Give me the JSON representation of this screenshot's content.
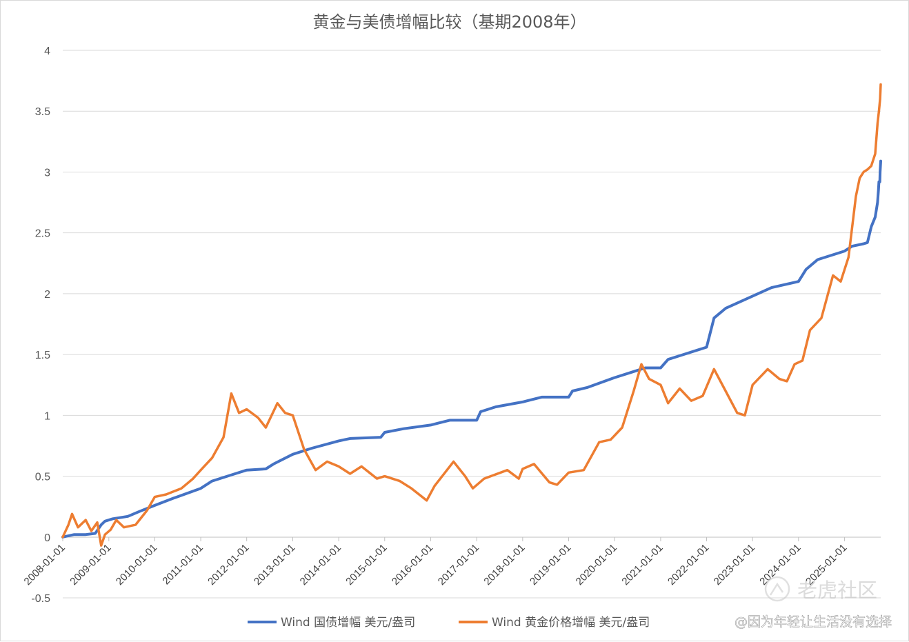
{
  "chart_data": {
    "type": "line",
    "title": "黄金与美债增幅比较（基期2008年）",
    "xlabel": "",
    "ylabel": "",
    "ylim": [
      -0.5,
      4
    ],
    "yticks": [
      -0.5,
      0,
      0.5,
      1,
      1.5,
      2,
      2.5,
      3,
      3.5,
      4
    ],
    "ytick_labels": [
      "-0.5",
      "0",
      "0.5",
      "1",
      "1.5",
      "2",
      "2.5",
      "3",
      "3.5",
      "4"
    ],
    "xrange": [
      "2008-01-01",
      "2025-10-15"
    ],
    "xtick_labels": [
      "2008-01-01",
      "2009-01-01",
      "2010-01-01",
      "2011-01-01",
      "2012-01-01",
      "2013-01-01",
      "2014-01-01",
      "2015-01-01",
      "2016-01-01",
      "2017-01-01",
      "2018-01-01",
      "2019-01-01",
      "2020-01-01",
      "2021-01-01",
      "2022-01-01",
      "2023-01-01",
      "2024-01-01",
      "2025-01-01"
    ],
    "grid": true,
    "legend_position": "bottom",
    "series": [
      {
        "name": "Wind 国债增幅 美元/盎司",
        "color": "#4472C4",
        "points": [
          [
            "2008-01-01",
            0.0
          ],
          [
            "2008-04-01",
            0.02
          ],
          [
            "2008-07-01",
            0.02
          ],
          [
            "2008-09-15",
            0.03
          ],
          [
            "2008-11-01",
            0.1
          ],
          [
            "2008-12-01",
            0.13
          ],
          [
            "2009-02-01",
            0.15
          ],
          [
            "2009-06-01",
            0.17
          ],
          [
            "2009-09-01",
            0.21
          ],
          [
            "2010-01-01",
            0.26
          ],
          [
            "2010-06-01",
            0.32
          ],
          [
            "2011-01-01",
            0.4
          ],
          [
            "2011-04-01",
            0.46
          ],
          [
            "2011-10-01",
            0.52
          ],
          [
            "2012-01-01",
            0.55
          ],
          [
            "2012-06-01",
            0.56
          ],
          [
            "2012-08-01",
            0.6
          ],
          [
            "2013-01-01",
            0.68
          ],
          [
            "2013-06-01",
            0.73
          ],
          [
            "2014-01-01",
            0.79
          ],
          [
            "2014-04-01",
            0.81
          ],
          [
            "2014-12-01",
            0.82
          ],
          [
            "2015-01-01",
            0.86
          ],
          [
            "2015-06-01",
            0.89
          ],
          [
            "2016-01-01",
            0.92
          ],
          [
            "2016-06-01",
            0.96
          ],
          [
            "2017-01-01",
            0.96
          ],
          [
            "2017-02-01",
            1.03
          ],
          [
            "2017-06-01",
            1.07
          ],
          [
            "2018-01-01",
            1.11
          ],
          [
            "2018-06-01",
            1.15
          ],
          [
            "2019-01-01",
            1.15
          ],
          [
            "2019-02-01",
            1.2
          ],
          [
            "2019-06-01",
            1.23
          ],
          [
            "2020-01-01",
            1.31
          ],
          [
            "2020-06-01",
            1.36
          ],
          [
            "2020-09-01",
            1.39
          ],
          [
            "2021-01-01",
            1.39
          ],
          [
            "2021-03-01",
            1.46
          ],
          [
            "2021-07-01",
            1.5
          ],
          [
            "2022-01-01",
            1.56
          ],
          [
            "2022-03-01",
            1.8
          ],
          [
            "2022-06-01",
            1.88
          ],
          [
            "2023-01-01",
            1.98
          ],
          [
            "2023-06-01",
            2.05
          ],
          [
            "2024-01-01",
            2.1
          ],
          [
            "2024-03-01",
            2.2
          ],
          [
            "2024-06-01",
            2.28
          ],
          [
            "2025-01-01",
            2.35
          ],
          [
            "2025-03-01",
            2.39
          ],
          [
            "2025-06-01",
            2.41
          ],
          [
            "2025-07-01",
            2.42
          ],
          [
            "2025-08-01",
            2.55
          ],
          [
            "2025-09-01",
            2.63
          ],
          [
            "2025-09-20",
            2.75
          ],
          [
            "2025-09-27",
            2.85
          ],
          [
            "2025-10-01",
            2.92
          ],
          [
            "2025-10-08",
            2.92
          ],
          [
            "2025-10-10",
            3.0
          ],
          [
            "2025-10-15",
            3.09
          ]
        ]
      },
      {
        "name": "Wind 黄金价格增幅 美元/盎司",
        "color": "#ED7D31",
        "points": [
          [
            "2008-01-01",
            0.0
          ],
          [
            "2008-02-15",
            0.1
          ],
          [
            "2008-03-15",
            0.19
          ],
          [
            "2008-05-01",
            0.08
          ],
          [
            "2008-07-01",
            0.14
          ],
          [
            "2008-08-15",
            0.05
          ],
          [
            "2008-10-01",
            0.12
          ],
          [
            "2008-11-01",
            -0.07
          ],
          [
            "2008-12-01",
            0.02
          ],
          [
            "2009-01-15",
            0.06
          ],
          [
            "2009-03-01",
            0.14
          ],
          [
            "2009-05-01",
            0.08
          ],
          [
            "2009-08-01",
            0.1
          ],
          [
            "2009-11-01",
            0.22
          ],
          [
            "2010-01-01",
            0.33
          ],
          [
            "2010-04-01",
            0.35
          ],
          [
            "2010-08-01",
            0.4
          ],
          [
            "2010-11-01",
            0.48
          ],
          [
            "2011-01-01",
            0.55
          ],
          [
            "2011-04-01",
            0.65
          ],
          [
            "2011-07-01",
            0.82
          ],
          [
            "2011-09-01",
            1.18
          ],
          [
            "2011-11-01",
            1.02
          ],
          [
            "2012-01-01",
            1.05
          ],
          [
            "2012-04-01",
            0.98
          ],
          [
            "2012-06-01",
            0.9
          ],
          [
            "2012-09-01",
            1.1
          ],
          [
            "2012-11-01",
            1.02
          ],
          [
            "2013-01-01",
            1.0
          ],
          [
            "2013-04-01",
            0.72
          ],
          [
            "2013-07-01",
            0.55
          ],
          [
            "2013-10-01",
            0.62
          ],
          [
            "2014-01-01",
            0.58
          ],
          [
            "2014-04-01",
            0.52
          ],
          [
            "2014-07-01",
            0.58
          ],
          [
            "2014-11-01",
            0.48
          ],
          [
            "2015-01-01",
            0.5
          ],
          [
            "2015-05-01",
            0.46
          ],
          [
            "2015-08-01",
            0.4
          ],
          [
            "2015-12-01",
            0.3
          ],
          [
            "2016-02-01",
            0.42
          ],
          [
            "2016-07-01",
            0.62
          ],
          [
            "2016-10-01",
            0.5
          ],
          [
            "2016-12-01",
            0.4
          ],
          [
            "2017-03-01",
            0.48
          ],
          [
            "2017-09-01",
            0.55
          ],
          [
            "2017-12-01",
            0.48
          ],
          [
            "2018-01-01",
            0.56
          ],
          [
            "2018-04-01",
            0.6
          ],
          [
            "2018-08-01",
            0.45
          ],
          [
            "2018-10-01",
            0.43
          ],
          [
            "2019-01-01",
            0.53
          ],
          [
            "2019-05-01",
            0.55
          ],
          [
            "2019-09-01",
            0.78
          ],
          [
            "2019-12-01",
            0.8
          ],
          [
            "2020-03-01",
            0.9
          ],
          [
            "2020-06-01",
            1.2
          ],
          [
            "2020-08-01",
            1.42
          ],
          [
            "2020-10-01",
            1.3
          ],
          [
            "2021-01-01",
            1.25
          ],
          [
            "2021-03-01",
            1.1
          ],
          [
            "2021-06-01",
            1.22
          ],
          [
            "2021-09-01",
            1.12
          ],
          [
            "2021-12-01",
            1.16
          ],
          [
            "2022-03-01",
            1.38
          ],
          [
            "2022-06-01",
            1.2
          ],
          [
            "2022-09-01",
            1.02
          ],
          [
            "2022-11-01",
            1.0
          ],
          [
            "2023-01-01",
            1.25
          ],
          [
            "2023-05-01",
            1.38
          ],
          [
            "2023-08-01",
            1.3
          ],
          [
            "2023-10-01",
            1.28
          ],
          [
            "2023-12-01",
            1.42
          ],
          [
            "2024-02-01",
            1.45
          ],
          [
            "2024-04-01",
            1.7
          ],
          [
            "2024-07-01",
            1.8
          ],
          [
            "2024-10-01",
            2.15
          ],
          [
            "2024-12-01",
            2.1
          ],
          [
            "2025-02-01",
            2.3
          ],
          [
            "2025-04-01",
            2.8
          ],
          [
            "2025-05-01",
            2.95
          ],
          [
            "2025-06-01",
            3.0
          ],
          [
            "2025-07-01",
            3.02
          ],
          [
            "2025-08-01",
            3.05
          ],
          [
            "2025-09-01",
            3.15
          ],
          [
            "2025-09-20",
            3.4
          ],
          [
            "2025-10-01",
            3.5
          ],
          [
            "2025-10-10",
            3.6
          ],
          [
            "2025-10-15",
            3.72
          ]
        ]
      }
    ]
  },
  "watermark": {
    "brand": "老虎社区",
    "handle": "@因为年轻让生活没有选择"
  }
}
